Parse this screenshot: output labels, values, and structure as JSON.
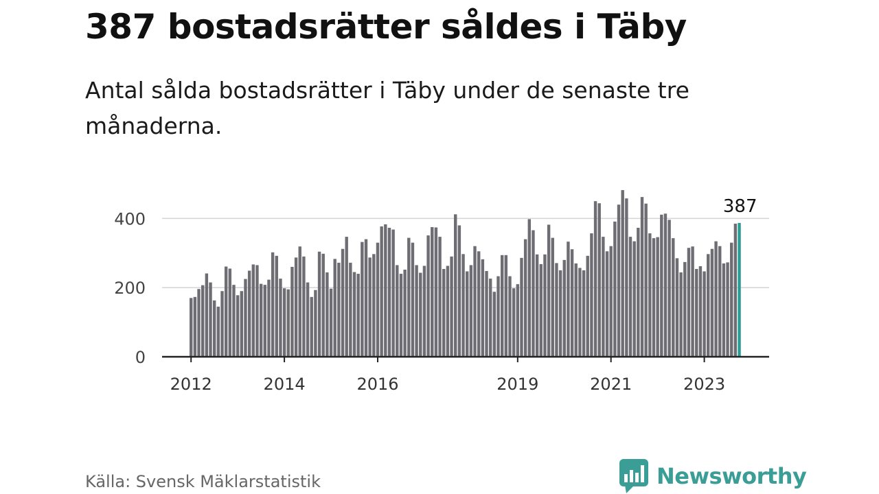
{
  "header": {
    "title": "387 bostadsrätter såldes i Täby",
    "subtitle": "Antal sålda bostadsrätter i Täby under de senaste tre månaderna."
  },
  "footer": {
    "source": "Källa: Svensk Mäklarstatistik",
    "brand": "Newsworthy"
  },
  "colors": {
    "bar": "#6e6d73",
    "highlight": "#2a9d95",
    "gridline": "#d4d4d4",
    "axis": "#222222",
    "brand": "#3a9e97"
  },
  "chart_data": {
    "type": "bar",
    "title": "387 bostadsrätter såldes i Täby",
    "xlabel": "",
    "ylabel": "",
    "ylim": [
      0,
      500
    ],
    "yticks": [
      0,
      200,
      400
    ],
    "grid": true,
    "highlight_label": "387",
    "x_ticks": [
      {
        "label": "2012",
        "index": 0
      },
      {
        "label": "2014",
        "index": 24
      },
      {
        "label": "2016",
        "index": 48
      },
      {
        "label": "2019",
        "index": 84
      },
      {
        "label": "2021",
        "index": 108
      },
      {
        "label": "2023",
        "index": 132
      }
    ],
    "series": [
      {
        "name": "Antal sålda bostadsrätter (rullande tre månader)",
        "values": [
          170,
          173,
          196,
          207,
          241,
          215,
          163,
          145,
          190,
          261,
          255,
          208,
          178,
          190,
          225,
          249,
          267,
          265,
          211,
          208,
          223,
          302,
          292,
          226,
          198,
          195,
          260,
          287,
          319,
          290,
          215,
          173,
          193,
          304,
          298,
          244,
          197,
          283,
          272,
          312,
          347,
          272,
          245,
          240,
          332,
          340,
          287,
          297,
          330,
          377,
          383,
          373,
          368,
          265,
          240,
          252,
          344,
          330,
          265,
          243,
          263,
          351,
          375,
          374,
          347,
          254,
          263,
          290,
          412,
          380,
          297,
          247,
          265,
          320,
          305,
          282,
          248,
          226,
          188,
          233,
          294,
          294,
          233,
          198,
          210,
          286,
          340,
          398,
          366,
          296,
          268,
          296,
          382,
          344,
          271,
          250,
          280,
          333,
          311,
          270,
          257,
          250,
          292,
          357,
          450,
          444,
          347,
          305,
          320,
          391,
          440,
          482,
          458,
          347,
          334,
          373,
          462,
          443,
          357,
          343,
          346,
          411,
          414,
          396,
          343,
          285,
          244,
          274,
          315,
          319,
          254,
          262,
          247,
          297,
          312,
          334,
          320,
          270,
          273,
          330,
          385,
          387
        ]
      }
    ]
  }
}
